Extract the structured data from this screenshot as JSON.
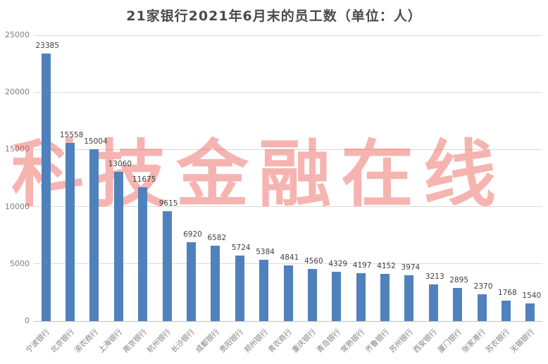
{
  "title": "21家银行2021年6月末的员工数（单位：人）",
  "watermark": "科技金融在线",
  "chart_data": {
    "type": "bar",
    "title": "21家银行2021年6月末的员工数（单位：人）",
    "categories": [
      "宁波银行",
      "北京银行",
      "渝农商行",
      "上海银行",
      "南京银行",
      "杭州银行",
      "长沙银行",
      "成都银行",
      "贵阳银行",
      "郑州银行",
      "青农商行",
      "重庆银行",
      "青岛银行",
      "常熟银行",
      "齐鲁银行",
      "苏州银行",
      "西安银行",
      "厦门银行",
      "张家港行",
      "苏农银行",
      "无锡银行"
    ],
    "values": [
      23385,
      15558,
      15004,
      13060,
      11675,
      9615,
      6920,
      6582,
      5724,
      5384,
      4841,
      4560,
      4329,
      4197,
      4152,
      3974,
      3213,
      2895,
      2370,
      1768,
      1540
    ],
    "data_labels": [
      23385,
      15558,
      15004,
      13060,
      11675,
      9615,
      6920,
      6582,
      5724,
      5384,
      4841,
      4560,
      4329,
      4197,
      4152,
      3974,
      3213,
      2895,
      2370,
      1768,
      1540
    ],
    "xlabel": "",
    "ylabel": "",
    "ylim": [
      0,
      25000
    ],
    "ytick_interval": 5000,
    "yticks": [
      0,
      5000,
      10000,
      15000,
      20000,
      25000
    ],
    "grid": true,
    "legend": "none",
    "bar_orientation": "vertical",
    "category_label_rotation_deg": 45
  },
  "colors": {
    "bar": "#4f81bd",
    "grid": "#d9d9d9",
    "axis_line": "#c0c0c0",
    "title_text": "#4a4a4a",
    "value_label": "#404040",
    "tick_label": "#7f7f7f",
    "watermark": "rgba(233,77,66,0.42)",
    "background": "#ffffff"
  }
}
